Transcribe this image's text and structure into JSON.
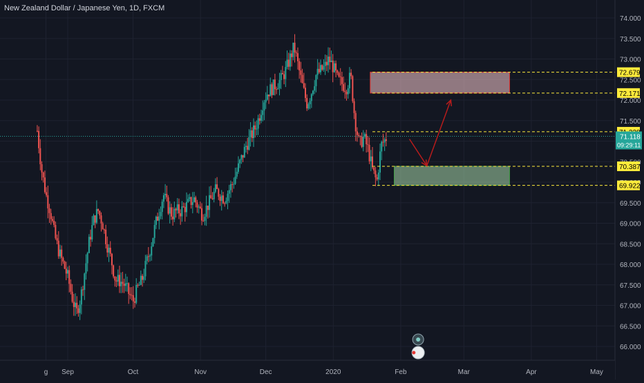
{
  "chart_data": {
    "type": "candlestick",
    "title": "New Zealand Dollar / Japanese Yen, 1D, FXCM",
    "ylim": [
      65.75,
      74.15
    ],
    "y_ticks": [
      "74.000",
      "73.500",
      "73.000",
      "72.500",
      "72.000",
      "71.500",
      "71.000",
      "70.500",
      "70.000",
      "69.500",
      "69.000",
      "68.500",
      "68.000",
      "67.500",
      "67.000",
      "66.500",
      "66.000"
    ],
    "x_ticks": [
      {
        "label": "g",
        "day": -10
      },
      {
        "label": "Sep",
        "day": 0
      },
      {
        "label": "Oct",
        "day": 30
      },
      {
        "label": "Nov",
        "day": 61
      },
      {
        "label": "Dec",
        "day": 91
      },
      {
        "label": "2020",
        "day": 122
      },
      {
        "label": "Feb",
        "day": 153
      },
      {
        "label": "Mar",
        "day": 182
      },
      {
        "label": "Apr",
        "day": 213
      },
      {
        "label": "May",
        "day": 243
      }
    ],
    "levels": [
      {
        "label": "72.679",
        "value": 72.679,
        "color": "#ffeb3b",
        "style": "dashed"
      },
      {
        "label": "72.171",
        "value": 72.171,
        "color": "#ffeb3b",
        "style": "dashed"
      },
      {
        "label": "71.228",
        "value": 71.228,
        "color": "#ffeb3b",
        "style": "dashed"
      },
      {
        "label": "70.387",
        "value": 70.387,
        "color": "#ffeb3b",
        "style": "dashed"
      },
      {
        "label": "69.922",
        "value": 69.922,
        "color": "#ffeb3b",
        "style": "dashed"
      }
    ],
    "last_price": {
      "label": "71.118",
      "value": 71.118,
      "color": "#26a69a"
    },
    "countdown": "09:29:11",
    "zones": [
      {
        "kind": "supply",
        "x0": 139,
        "x1": 203,
        "y0": 72.171,
        "y1": 72.679,
        "fill": "#f7c9cd",
        "border": "#e53935"
      },
      {
        "kind": "demand",
        "x0": 150,
        "x1": 203,
        "y0": 69.922,
        "y1": 70.387,
        "fill": "#a5d6a7",
        "border": "#43a047"
      }
    ],
    "projection": [
      [
        157,
        71.05
      ],
      [
        165,
        70.4
      ],
      [
        176,
        72.0
      ]
    ],
    "projection_color": "#b71c1c",
    "colors": {
      "up": "#26a69a",
      "down": "#ef5350",
      "grid": "#1e2230",
      "text": "#b2b5be",
      "bg": "#131722"
    },
    "anchors": [
      [
        -14,
        71.25
      ],
      [
        -12,
        70.3
      ],
      [
        -10,
        69.7
      ],
      [
        -8,
        69.3
      ],
      [
        -6,
        68.7
      ],
      [
        -4,
        68.3
      ],
      [
        -2,
        68.0
      ],
      [
        0,
        67.7
      ],
      [
        2,
        67.2
      ],
      [
        4,
        66.8
      ],
      [
        6,
        67.2
      ],
      [
        8,
        67.9
      ],
      [
        10,
        68.6
      ],
      [
        12,
        69.1
      ],
      [
        14,
        69.3
      ],
      [
        16,
        69.0
      ],
      [
        18,
        68.5
      ],
      [
        20,
        68.1
      ],
      [
        22,
        67.6
      ],
      [
        24,
        67.6
      ],
      [
        26,
        67.5
      ],
      [
        28,
        67.3
      ],
      [
        30,
        67.1
      ],
      [
        32,
        67.4
      ],
      [
        34,
        67.6
      ],
      [
        36,
        68.0
      ],
      [
        38,
        68.4
      ],
      [
        40,
        68.9
      ],
      [
        42,
        69.3
      ],
      [
        44,
        69.7
      ],
      [
        46,
        69.4
      ],
      [
        48,
        69.2
      ],
      [
        50,
        69.3
      ],
      [
        52,
        69.3
      ],
      [
        54,
        69.4
      ],
      [
        56,
        69.5
      ],
      [
        58,
        69.6
      ],
      [
        60,
        69.4
      ],
      [
        62,
        69.2
      ],
      [
        64,
        69.4
      ],
      [
        66,
        69.6
      ],
      [
        68,
        69.8
      ],
      [
        70,
        69.7
      ],
      [
        72,
        69.6
      ],
      [
        74,
        69.8
      ],
      [
        76,
        70.0
      ],
      [
        78,
        70.3
      ],
      [
        80,
        70.6
      ],
      [
        82,
        70.9
      ],
      [
        84,
        71.1
      ],
      [
        86,
        71.3
      ],
      [
        88,
        71.6
      ],
      [
        90,
        72.0
      ],
      [
        92,
        72.2
      ],
      [
        94,
        72.3
      ],
      [
        96,
        72.4
      ],
      [
        98,
        72.5
      ],
      [
        100,
        72.7
      ],
      [
        102,
        73.0
      ],
      [
        104,
        73.3
      ],
      [
        106,
        72.8
      ],
      [
        108,
        72.3
      ],
      [
        110,
        71.9
      ],
      [
        112,
        72.2
      ],
      [
        114,
        72.6
      ],
      [
        116,
        72.7
      ],
      [
        118,
        72.8
      ],
      [
        120,
        73.0
      ],
      [
        122,
        72.8
      ],
      [
        124,
        72.5
      ],
      [
        126,
        72.4
      ],
      [
        128,
        72.3
      ],
      [
        130,
        72.6
      ],
      [
        132,
        71.5
      ],
      [
        134,
        70.9
      ],
      [
        136,
        71.1
      ],
      [
        138,
        70.8
      ],
      [
        140,
        70.3
      ],
      [
        142,
        70.0
      ],
      [
        144,
        70.9
      ],
      [
        146,
        71.05
      ],
      [
        147,
        71.15
      ]
    ]
  }
}
